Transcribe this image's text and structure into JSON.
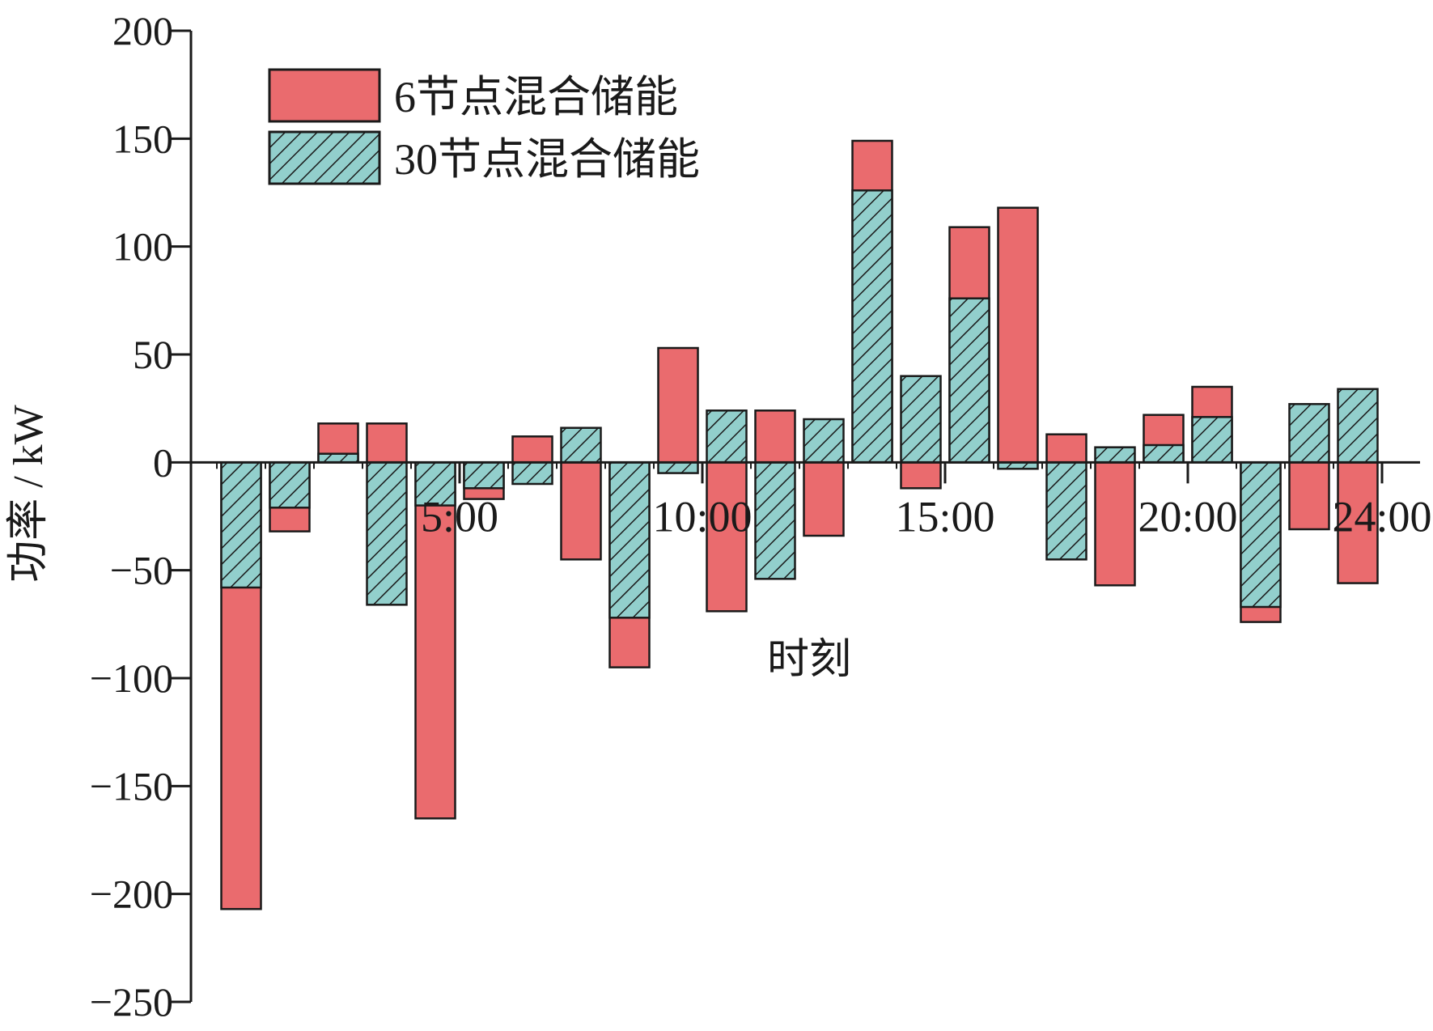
{
  "chart_data": {
    "type": "bar",
    "title": "",
    "xlabel": "时刻",
    "ylabel": "功率 / kW",
    "ylim": [
      -250,
      200
    ],
    "yticks": [
      200,
      150,
      100,
      50,
      0,
      -50,
      -100,
      -150,
      -200,
      -250
    ],
    "ytick_labels": [
      "200",
      "150",
      "100",
      "50",
      "0",
      "−50",
      "−100",
      "−150",
      "−200",
      "−250"
    ],
    "xlim": [
      0,
      24
    ],
    "xticks": [
      5,
      10,
      15,
      20,
      24
    ],
    "xtick_labels": [
      "5:00",
      "10:00",
      "15:00",
      "20:00",
      "24:00"
    ],
    "hours": [
      1,
      2,
      3,
      4,
      5,
      6,
      7,
      8,
      9,
      10,
      11,
      12,
      13,
      14,
      15,
      16,
      17,
      18,
      19,
      20,
      21,
      22,
      23,
      24
    ],
    "legend_position": "top-left",
    "grid": false,
    "series": [
      {
        "name": "6节点混合储能",
        "color": "#ea6b6e",
        "pattern": "solid",
        "values": [
          -207,
          -32,
          18,
          18,
          -165,
          -17,
          12,
          -45,
          -95,
          53,
          -69,
          24,
          -34,
          149,
          -12,
          109,
          118,
          13,
          -57,
          22,
          35,
          -74,
          -31,
          -56
        ]
      },
      {
        "name": "30节点混合储能",
        "color": "#92cfcc",
        "pattern": "hatch",
        "values": [
          -58,
          -21,
          4,
          -66,
          -20,
          -12,
          -10,
          16,
          -72,
          -5,
          24,
          -54,
          20,
          126,
          40,
          76,
          -3,
          -45,
          7,
          8,
          21,
          -67,
          27,
          34
        ]
      }
    ]
  }
}
